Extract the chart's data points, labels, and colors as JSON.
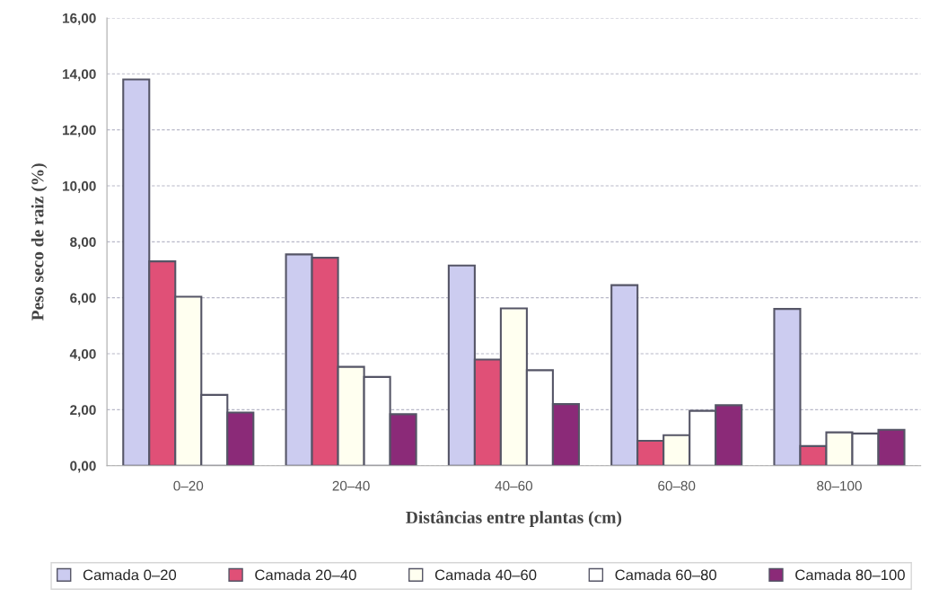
{
  "chart_data": {
    "type": "bar",
    "xlabel": "Distâncias entre plantas (cm)",
    "ylabel": "Peso seco de raiz (%)",
    "categories": [
      "0–20",
      "20–40",
      "40–60",
      "60–80",
      "80–100"
    ],
    "series": [
      {
        "name": "Camada 0–20",
        "color": "#ccccf0",
        "values": [
          13.8,
          7.55,
          7.15,
          6.45,
          5.6
        ]
      },
      {
        "name": "Camada 20–40",
        "color": "#e05077",
        "values": [
          7.3,
          7.43,
          3.79,
          0.89,
          0.7
        ]
      },
      {
        "name": "Camada 40–60",
        "color": "#fffff0",
        "values": [
          6.04,
          3.53,
          5.62,
          1.09,
          1.19
        ]
      },
      {
        "name": "Camada 60–80",
        "color": "#ffffff",
        "values": [
          2.53,
          3.17,
          3.41,
          1.96,
          1.15
        ]
      },
      {
        "name": "Camada 80–100",
        "color": "#8b2a78",
        "values": [
          1.9,
          1.84,
          2.2,
          2.16,
          1.28
        ]
      }
    ],
    "ylim": [
      0,
      16
    ],
    "yticks": [
      {
        "value": 0,
        "label": "0,00"
      },
      {
        "value": 2,
        "label": "2,00"
      },
      {
        "value": 4,
        "label": "4,00"
      },
      {
        "value": 6,
        "label": "6,00"
      },
      {
        "value": 8,
        "label": "8,00"
      },
      {
        "value": 10,
        "label": "10,00"
      },
      {
        "value": 12,
        "label": "12,00"
      },
      {
        "value": 14,
        "label": "14,00"
      },
      {
        "value": 16,
        "label": "16,00"
      }
    ],
    "grid": "y",
    "legend": "bottom"
  }
}
